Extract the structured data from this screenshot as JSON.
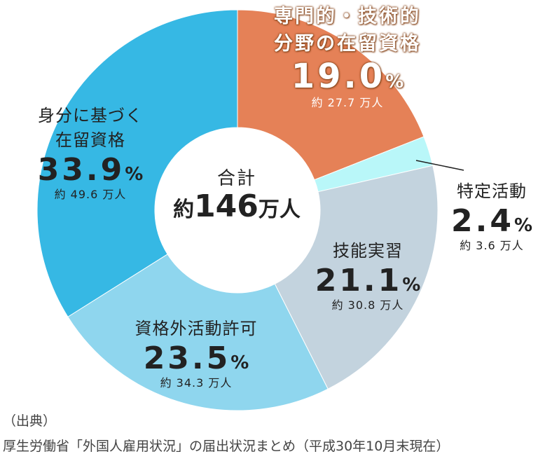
{
  "chart_data": {
    "type": "pie",
    "center": {
      "title": "合計",
      "prefix": "約",
      "value": "146",
      "unit": "万人"
    },
    "slices": [
      {
        "name_lines": [
          "専門的・技術的",
          "分野の在留資格"
        ],
        "value": 19.0,
        "value_label": "19.0",
        "approx": "約 27.7 万人",
        "color": "#e58157",
        "highlight": true
      },
      {
        "name_lines": [
          "特定活動"
        ],
        "value": 2.4,
        "value_label": "2.4",
        "approx": "約 3.6 万人",
        "color": "#b9f7f9",
        "highlight": false
      },
      {
        "name_lines": [
          "技能実習"
        ],
        "value": 21.1,
        "value_label": "21.1",
        "approx": "約 30.8 万人",
        "color": "#c3d3de",
        "highlight": false
      },
      {
        "name_lines": [
          "資格外活動許可"
        ],
        "value": 23.5,
        "value_label": "23.5",
        "approx": "約 34.3 万人",
        "color": "#8fd6ee",
        "highlight": false
      },
      {
        "name_lines": [
          "身分に基づく",
          "在留資格"
        ],
        "value": 33.9,
        "value_label": "33.9",
        "approx": "約 49.6 万人",
        "color": "#36b8e4",
        "highlight": false
      }
    ],
    "percent_unit": "%"
  },
  "source": {
    "heading": "（出典）",
    "text": "厚生労働省「外国人雇用状況」の届出状況まとめ（平成30年10月末現在）"
  }
}
